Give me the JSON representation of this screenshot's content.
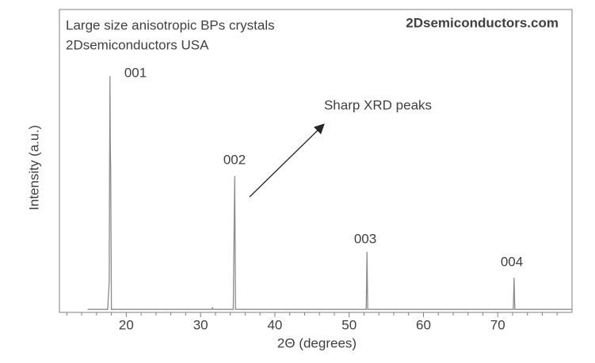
{
  "chart_data": {
    "type": "line",
    "title": "Large size anisotropic BPs crystals",
    "subtitle": "2Dsemiconductors USA",
    "watermark": "2Dsemiconductors.com",
    "x_label": "2Θ (degrees)",
    "y_label": "Intensity (a.u.)",
    "annotations": [
      "001",
      "002",
      "003",
      "004",
      "Sharp XRD peaks"
    ],
    "xlim": [
      11,
      80
    ],
    "xticks": [
      20,
      30,
      40,
      50,
      60,
      70
    ],
    "x_minor_ticks": [
      12,
      14,
      16,
      18,
      22,
      24,
      26,
      28,
      32,
      34,
      36,
      38,
      42,
      44,
      46,
      48,
      52,
      54,
      56,
      58,
      62,
      64,
      66,
      68,
      72,
      74,
      76,
      78
    ],
    "ylim": [
      0,
      100
    ],
    "series": [
      {
        "color": "#8c8c8c",
        "x": [
          14.8,
          17.5,
          17.7,
          17.8,
          17.85,
          17.9,
          18.0,
          31.5,
          31.6,
          31.7,
          34.4,
          34.55,
          34.6,
          34.7,
          52.3,
          52.4,
          52.5,
          72.1,
          72.2,
          72.3,
          80
        ],
        "values": [
          1,
          1,
          10,
          78,
          55,
          47,
          1,
          1,
          1.5,
          1,
          1,
          35,
          45,
          1,
          1,
          20,
          1,
          1,
          11.5,
          1,
          1
        ]
      }
    ]
  }
}
